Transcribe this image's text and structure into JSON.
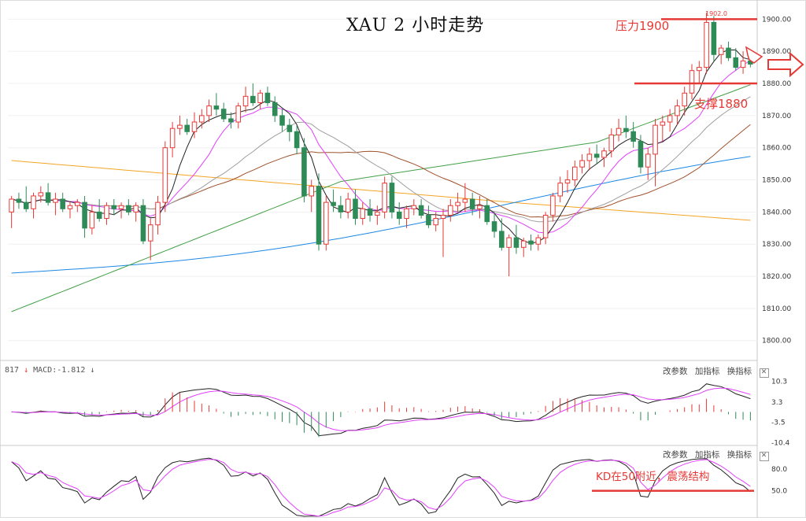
{
  "title": "XAU 2 小时走势",
  "annotations": {
    "resistance": "压力1900",
    "support": "支撑1880",
    "kd_note": "KD在50附近，震荡结构",
    "high_marker": "1902.0"
  },
  "macd_panel": {
    "label_prefix": "817",
    "label": "MACD:-1.812",
    "toolbar": [
      "改参数",
      "加指标",
      "换指标"
    ],
    "close": "✕",
    "y_ticks": [
      "10.3",
      "3.3",
      "-3.5",
      "-10.4"
    ]
  },
  "kd_panel": {
    "toolbar": [
      "改参数",
      "加指标",
      "换指标"
    ],
    "close": "✕",
    "y_ticks": [
      "80.0",
      "50.0"
    ]
  },
  "colors": {
    "up": "#e53935",
    "down": "#2e8b57",
    "ma5": "#222222",
    "ma10": "#e040fb",
    "ma20": "#9e9e9e",
    "ma30": "#a0522d",
    "ma60": "#43a047",
    "ma120": "#1e88e5",
    "ma250": "#f4a425",
    "annotation": "#e53935"
  },
  "chart_data": [
    {
      "type": "candlestick",
      "title": "XAU 2 小时走势",
      "y_ticks": [
        1900,
        1890,
        1880,
        1870,
        1860,
        1850,
        1840,
        1830,
        1820,
        1810,
        1800
      ],
      "ylim": [
        1797,
        1904
      ],
      "annotations": [
        {
          "text": "压力1900",
          "level": 1900
        },
        {
          "text": "支撑1880",
          "level": 1880
        },
        {
          "text": "1902.0",
          "level": 1902
        }
      ],
      "ohlc": [
        [
          1840,
          1845,
          1835,
          1844
        ],
        [
          1844,
          1846,
          1841,
          1843
        ],
        [
          1843,
          1848,
          1840,
          1841
        ],
        [
          1841,
          1846,
          1838,
          1845
        ],
        [
          1845,
          1848,
          1843,
          1846
        ],
        [
          1846,
          1849,
          1842,
          1843
        ],
        [
          1843,
          1846,
          1839,
          1844
        ],
        [
          1844,
          1846,
          1840,
          1841
        ],
        [
          1841,
          1843,
          1838,
          1842
        ],
        [
          1842,
          1844,
          1840,
          1843
        ],
        [
          1843,
          1845,
          1832,
          1835
        ],
        [
          1835,
          1842,
          1833,
          1840
        ],
        [
          1840,
          1844,
          1837,
          1838
        ],
        [
          1838,
          1843,
          1836,
          1842
        ],
        [
          1842,
          1844,
          1839,
          1841
        ],
        [
          1841,
          1843,
          1838,
          1842
        ],
        [
          1842,
          1844,
          1839,
          1840
        ],
        [
          1840,
          1843,
          1837,
          1842
        ],
        [
          1842,
          1844,
          1830,
          1831
        ],
        [
          1831,
          1838,
          1825,
          1836
        ],
        [
          1836,
          1845,
          1833,
          1843
        ],
        [
          1843,
          1862,
          1840,
          1860
        ],
        [
          1860,
          1868,
          1857,
          1866
        ],
        [
          1866,
          1870,
          1864,
          1867
        ],
        [
          1867,
          1869,
          1864,
          1865
        ],
        [
          1865,
          1871,
          1863,
          1868
        ],
        [
          1868,
          1872,
          1866,
          1870
        ],
        [
          1870,
          1875,
          1868,
          1873
        ],
        [
          1873,
          1877,
          1870,
          1872
        ],
        [
          1872,
          1874,
          1868,
          1869
        ],
        [
          1869,
          1871,
          1866,
          1868
        ],
        [
          1868,
          1874,
          1866,
          1873
        ],
        [
          1873,
          1879,
          1871,
          1876
        ],
        [
          1876,
          1880,
          1873,
          1874
        ],
        [
          1874,
          1878,
          1872,
          1877
        ],
        [
          1877,
          1879,
          1873,
          1874
        ],
        [
          1874,
          1876,
          1868,
          1870
        ],
        [
          1870,
          1872,
          1865,
          1867
        ],
        [
          1867,
          1869,
          1862,
          1865
        ],
        [
          1865,
          1867,
          1858,
          1860
        ],
        [
          1860,
          1863,
          1843,
          1845
        ],
        [
          1845,
          1850,
          1840,
          1848
        ],
        [
          1848,
          1852,
          1828,
          1830
        ],
        [
          1830,
          1845,
          1828,
          1843
        ],
        [
          1843,
          1847,
          1840,
          1842
        ],
        [
          1842,
          1845,
          1838,
          1840
        ],
        [
          1840,
          1846,
          1838,
          1844
        ],
        [
          1844,
          1847,
          1836,
          1838
        ],
        [
          1838,
          1843,
          1836,
          1841
        ],
        [
          1841,
          1844,
          1837,
          1839
        ],
        [
          1839,
          1842,
          1836,
          1840
        ],
        [
          1840,
          1851,
          1838,
          1849
        ],
        [
          1849,
          1851,
          1838,
          1840
        ],
        [
          1840,
          1843,
          1836,
          1838
        ],
        [
          1838,
          1842,
          1835,
          1841
        ],
        [
          1841,
          1844,
          1839,
          1842
        ],
        [
          1842,
          1844,
          1838,
          1839
        ],
        [
          1839,
          1842,
          1835,
          1836
        ],
        [
          1836,
          1840,
          1834,
          1838
        ],
        [
          1838,
          1841,
          1826,
          1839
        ],
        [
          1839,
          1844,
          1837,
          1842
        ],
        [
          1842,
          1846,
          1840,
          1843
        ],
        [
          1843,
          1849,
          1840,
          1844
        ],
        [
          1844,
          1846,
          1839,
          1841
        ],
        [
          1841,
          1845,
          1838,
          1842
        ],
        [
          1842,
          1844,
          1836,
          1837
        ],
        [
          1837,
          1840,
          1832,
          1834
        ],
        [
          1834,
          1838,
          1828,
          1829
        ],
        [
          1829,
          1833,
          1820,
          1832
        ],
        [
          1832,
          1836,
          1827,
          1829
        ],
        [
          1829,
          1832,
          1826,
          1831
        ],
        [
          1831,
          1833,
          1828,
          1830
        ],
        [
          1830,
          1833,
          1828,
          1832
        ],
        [
          1832,
          1840,
          1830,
          1839
        ],
        [
          1839,
          1846,
          1837,
          1845
        ],
        [
          1845,
          1851,
          1843,
          1849
        ],
        [
          1849,
          1853,
          1846,
          1850
        ],
        [
          1850,
          1856,
          1848,
          1854
        ],
        [
          1854,
          1858,
          1852,
          1856
        ],
        [
          1856,
          1860,
          1853,
          1858
        ],
        [
          1858,
          1861,
          1855,
          1857
        ],
        [
          1857,
          1860,
          1854,
          1859
        ],
        [
          1859,
          1866,
          1857,
          1864
        ],
        [
          1864,
          1869,
          1862,
          1866
        ],
        [
          1866,
          1870,
          1863,
          1865
        ],
        [
          1865,
          1868,
          1860,
          1862
        ],
        [
          1862,
          1864,
          1852,
          1854
        ],
        [
          1854,
          1860,
          1850,
          1858
        ],
        [
          1858,
          1869,
          1848,
          1867
        ],
        [
          1867,
          1870,
          1862,
          1868
        ],
        [
          1868,
          1872,
          1865,
          1870
        ],
        [
          1870,
          1875,
          1867,
          1873
        ],
        [
          1873,
          1879,
          1870,
          1877
        ],
        [
          1877,
          1886,
          1875,
          1884
        ],
        [
          1884,
          1887,
          1880,
          1885
        ],
        [
          1885,
          1902,
          1883,
          1899
        ],
        [
          1899,
          1901,
          1887,
          1889
        ],
        [
          1889,
          1892,
          1886,
          1891
        ],
        [
          1891,
          1893,
          1887,
          1888
        ],
        [
          1888,
          1891,
          1884,
          1885
        ],
        [
          1885,
          1890,
          1883,
          1887
        ],
        [
          1887,
          1890,
          1885,
          1886
        ]
      ]
    },
    {
      "type": "macd",
      "label": "MACD:-1.812",
      "y_ticks": [
        10.3,
        3.3,
        -3.5,
        -10.4
      ],
      "ylim": [
        -11,
        12
      ]
    },
    {
      "type": "kd",
      "y_ticks": [
        80.0,
        50.0
      ],
      "ylim": [
        15,
        95
      ],
      "annotations": [
        {
          "text": "KD在50附近，震荡结构",
          "level": 50
        }
      ]
    }
  ]
}
